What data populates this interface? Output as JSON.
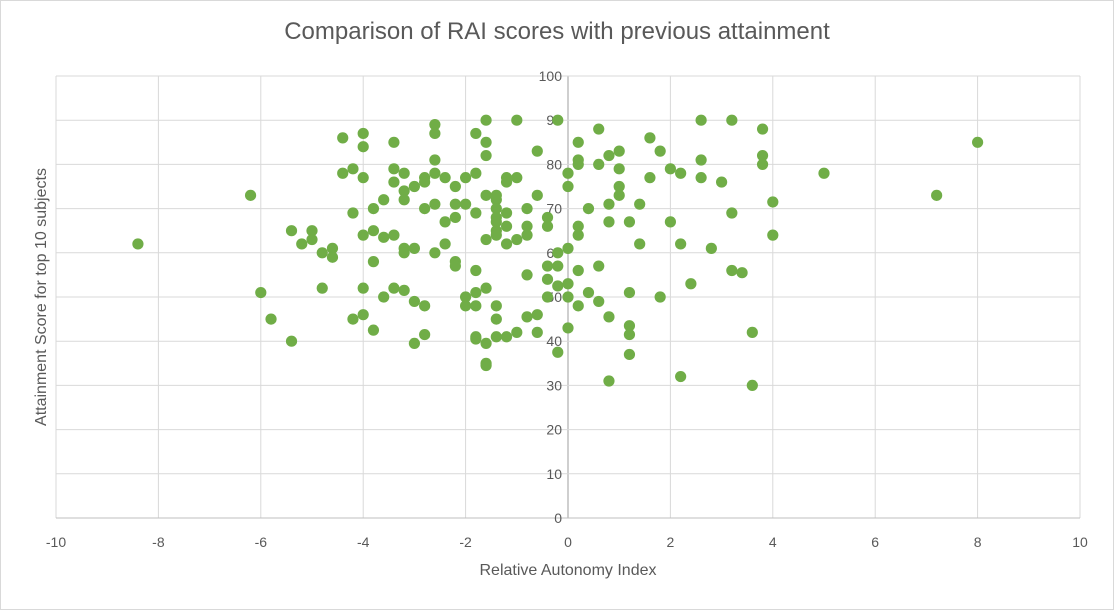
{
  "chart_data": {
    "type": "scatter",
    "title": "Comparison of RAI scores with previous attainment",
    "xlabel": "Relative Autonomy Index",
    "ylabel": "Attainment Score for top 10 subjects",
    "xlim": [
      -10,
      10
    ],
    "ylim": [
      0,
      100
    ],
    "xticks": [
      -10,
      -8,
      -6,
      -4,
      -2,
      0,
      2,
      4,
      6,
      8,
      10
    ],
    "yticks": [
      0,
      10,
      20,
      30,
      40,
      50,
      60,
      70,
      80,
      90,
      100
    ],
    "grid": true,
    "legend": "none",
    "marker_color": "#70ad47",
    "grid_color": "#d9d9d9",
    "points": [
      [
        -8.4,
        62
      ],
      [
        -6.2,
        73
      ],
      [
        -6,
        51
      ],
      [
        -5.8,
        45
      ],
      [
        -5.4,
        40
      ],
      [
        -5.4,
        65
      ],
      [
        -5.2,
        62
      ],
      [
        -5,
        65
      ],
      [
        -5,
        63
      ],
      [
        -4.8,
        60
      ],
      [
        -4.8,
        52
      ],
      [
        -4.6,
        61
      ],
      [
        -4.6,
        59
      ],
      [
        -4.4,
        86
      ],
      [
        -4.4,
        78
      ],
      [
        -4.2,
        79
      ],
      [
        -4.2,
        69
      ],
      [
        -4.2,
        45
      ],
      [
        -4,
        87
      ],
      [
        -4,
        84
      ],
      [
        -4,
        77
      ],
      [
        -4,
        64
      ],
      [
        -4,
        52
      ],
      [
        -4,
        46
      ],
      [
        -3.8,
        70
      ],
      [
        -3.8,
        65
      ],
      [
        -3.8,
        58
      ],
      [
        -3.8,
        42.5
      ],
      [
        -3.6,
        72
      ],
      [
        -3.6,
        63.5
      ],
      [
        -3.6,
        50
      ],
      [
        -3.4,
        85
      ],
      [
        -3.4,
        79
      ],
      [
        -3.4,
        76
      ],
      [
        -3.4,
        64
      ],
      [
        -3.4,
        52
      ],
      [
        -3.2,
        78
      ],
      [
        -3.2,
        74
      ],
      [
        -3.2,
        72
      ],
      [
        -3.2,
        61
      ],
      [
        -3.2,
        60
      ],
      [
        -3.2,
        51.5
      ],
      [
        -3,
        75
      ],
      [
        -3,
        61
      ],
      [
        -3,
        49
      ],
      [
        -3,
        39.5
      ],
      [
        -2.8,
        77
      ],
      [
        -2.8,
        76
      ],
      [
        -2.8,
        70
      ],
      [
        -2.8,
        48
      ],
      [
        -2.8,
        41.5
      ],
      [
        -2.6,
        89
      ],
      [
        -2.6,
        87
      ],
      [
        -2.6,
        81
      ],
      [
        -2.6,
        78
      ],
      [
        -2.6,
        71
      ],
      [
        -2.6,
        60
      ],
      [
        -2.4,
        77
      ],
      [
        -2.4,
        67
      ],
      [
        -2.4,
        62
      ],
      [
        -2.2,
        75
      ],
      [
        -2.2,
        71
      ],
      [
        -2.2,
        68
      ],
      [
        -2.2,
        58
      ],
      [
        -2.2,
        57
      ],
      [
        -2,
        77
      ],
      [
        -2,
        71
      ],
      [
        -2,
        50
      ],
      [
        -2,
        48
      ],
      [
        -1.8,
        87
      ],
      [
        -1.8,
        78
      ],
      [
        -1.8,
        69
      ],
      [
        -1.8,
        56
      ],
      [
        -1.8,
        51
      ],
      [
        -1.8,
        48
      ],
      [
        -1.8,
        41
      ],
      [
        -1.8,
        40.5
      ],
      [
        -1.6,
        90
      ],
      [
        -1.6,
        85
      ],
      [
        -1.6,
        82
      ],
      [
        -1.6,
        73
      ],
      [
        -1.6,
        63
      ],
      [
        -1.6,
        52
      ],
      [
        -1.6,
        39.5
      ],
      [
        -1.6,
        35
      ],
      [
        -1.6,
        34.5
      ],
      [
        -1.4,
        73
      ],
      [
        -1.4,
        72
      ],
      [
        -1.4,
        70
      ],
      [
        -1.4,
        68
      ],
      [
        -1.4,
        67
      ],
      [
        -1.4,
        65
      ],
      [
        -1.4,
        64
      ],
      [
        -1.4,
        48
      ],
      [
        -1.4,
        45
      ],
      [
        -1.4,
        41
      ],
      [
        -1.2,
        77
      ],
      [
        -1.2,
        76
      ],
      [
        -1.2,
        69
      ],
      [
        -1.2,
        66
      ],
      [
        -1.2,
        62
      ],
      [
        -1.2,
        41
      ],
      [
        -1,
        90
      ],
      [
        -1,
        77
      ],
      [
        -1,
        63
      ],
      [
        -1,
        42
      ],
      [
        -0.8,
        70
      ],
      [
        -0.8,
        66
      ],
      [
        -0.8,
        64
      ],
      [
        -0.8,
        55
      ],
      [
        -0.8,
        45.5
      ],
      [
        -0.6,
        83
      ],
      [
        -0.6,
        73
      ],
      [
        -0.6,
        46
      ],
      [
        -0.6,
        42
      ],
      [
        -0.4,
        68
      ],
      [
        -0.4,
        66
      ],
      [
        -0.4,
        57
      ],
      [
        -0.4,
        54
      ],
      [
        -0.4,
        50
      ],
      [
        -0.2,
        90
      ],
      [
        -0.2,
        60
      ],
      [
        -0.2,
        57
      ],
      [
        -0.2,
        52.5
      ],
      [
        -0.2,
        37.5
      ],
      [
        0,
        78
      ],
      [
        0,
        75
      ],
      [
        0,
        61
      ],
      [
        0,
        53
      ],
      [
        0,
        50
      ],
      [
        0,
        43
      ],
      [
        0.2,
        85
      ],
      [
        0.2,
        81
      ],
      [
        0.2,
        80
      ],
      [
        0.2,
        66
      ],
      [
        0.2,
        64
      ],
      [
        0.2,
        56
      ],
      [
        0.2,
        48
      ],
      [
        0.4,
        70
      ],
      [
        0.4,
        51
      ],
      [
        0.6,
        88
      ],
      [
        0.6,
        80
      ],
      [
        0.6,
        57
      ],
      [
        0.6,
        49
      ],
      [
        0.8,
        82
      ],
      [
        0.8,
        71
      ],
      [
        0.8,
        67
      ],
      [
        0.8,
        45.5
      ],
      [
        0.8,
        31
      ],
      [
        1,
        83
      ],
      [
        1,
        79
      ],
      [
        1,
        75
      ],
      [
        1,
        73
      ],
      [
        1.2,
        67
      ],
      [
        1.2,
        51
      ],
      [
        1.2,
        43.5
      ],
      [
        1.2,
        41.5
      ],
      [
        1.2,
        37
      ],
      [
        1.4,
        71
      ],
      [
        1.4,
        62
      ],
      [
        1.6,
        86
      ],
      [
        1.6,
        77
      ],
      [
        1.8,
        83
      ],
      [
        1.8,
        50
      ],
      [
        2,
        79
      ],
      [
        2,
        67
      ],
      [
        2.2,
        78
      ],
      [
        2.2,
        62
      ],
      [
        2.2,
        32
      ],
      [
        2.4,
        53
      ],
      [
        2.6,
        90
      ],
      [
        2.6,
        81
      ],
      [
        2.6,
        77
      ],
      [
        2.8,
        61
      ],
      [
        3,
        76
      ],
      [
        3.2,
        90
      ],
      [
        3.2,
        69
      ],
      [
        3.2,
        56
      ],
      [
        3.4,
        55.5
      ],
      [
        3.6,
        42
      ],
      [
        3.6,
        30
      ],
      [
        3.8,
        88
      ],
      [
        3.8,
        82
      ],
      [
        3.8,
        80
      ],
      [
        4,
        71.5
      ],
      [
        4,
        64
      ],
      [
        5,
        78
      ],
      [
        7.2,
        73
      ],
      [
        8,
        85
      ]
    ]
  }
}
